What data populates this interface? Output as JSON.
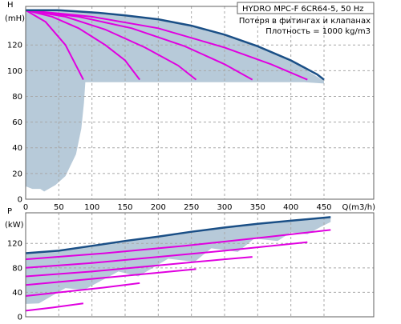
{
  "legend": {
    "title": "HYDRO MPC-F 6CR64-5, 50 Hz",
    "line1": "Потеря в фитингах и клапанах",
    "line2": "Плотность = 1000 kg/m3"
  },
  "colors": {
    "envelope": "#b7cad9",
    "max_curve": "#1a4f86",
    "op_curves": "#e000e0"
  },
  "chart_data": [
    {
      "type": "line",
      "name": "head",
      "ylabel_main": "H",
      "ylabel_unit": "(mH)",
      "xlabel": "Q(m3/h)",
      "xlim": [
        0,
        525
      ],
      "ylim": [
        0,
        150
      ],
      "xticks": [
        0,
        50,
        100,
        150,
        200,
        250,
        300,
        350,
        400,
        450
      ],
      "yticks": [
        0,
        20,
        40,
        60,
        80,
        100,
        120
      ],
      "grid": true,
      "envelope": [
        [
          0,
          147
        ],
        [
          30,
          147
        ],
        [
          50,
          147
        ],
        [
          80,
          146
        ],
        [
          110,
          145
        ],
        [
          150,
          143
        ],
        [
          200,
          140
        ],
        [
          250,
          135
        ],
        [
          300,
          128
        ],
        [
          350,
          119
        ],
        [
          400,
          108
        ],
        [
          450,
          92
        ],
        [
          450,
          90
        ],
        [
          420,
          91
        ],
        [
          380,
          91
        ],
        [
          340,
          91
        ],
        [
          300,
          91
        ],
        [
          260,
          91
        ],
        [
          220,
          91
        ],
        [
          180,
          91
        ],
        [
          150,
          91
        ],
        [
          120,
          91
        ],
        [
          90,
          91
        ],
        [
          88,
          75
        ],
        [
          84,
          55
        ],
        [
          76,
          35
        ],
        [
          60,
          18
        ],
        [
          45,
          11
        ],
        [
          28,
          6
        ],
        [
          22,
          8
        ],
        [
          10,
          8
        ],
        [
          0,
          10
        ]
      ],
      "max_curve": [
        [
          0,
          147
        ],
        [
          30,
          147
        ],
        [
          50,
          147
        ],
        [
          80,
          146
        ],
        [
          110,
          145
        ],
        [
          150,
          143
        ],
        [
          200,
          140
        ],
        [
          250,
          135
        ],
        [
          300,
          128
        ],
        [
          350,
          119
        ],
        [
          400,
          108
        ],
        [
          440,
          97
        ],
        [
          450,
          93
        ]
      ],
      "series": [
        {
          "values": [
            [
              0,
              147
            ],
            [
              30,
              138
            ],
            [
              60,
              120
            ],
            [
              87,
              93
            ]
          ]
        },
        {
          "values": [
            [
              0,
              147
            ],
            [
              40,
              142
            ],
            [
              80,
              133
            ],
            [
              120,
              120
            ],
            [
              150,
              108
            ],
            [
              172,
              93
            ]
          ]
        },
        {
          "values": [
            [
              0,
              147
            ],
            [
              60,
              142
            ],
            [
              120,
              132
            ],
            [
              180,
              118
            ],
            [
              230,
              104
            ],
            [
              257,
              93
            ]
          ]
        },
        {
          "values": [
            [
              0,
              147
            ],
            [
              80,
              142
            ],
            [
              160,
              133
            ],
            [
              240,
              119
            ],
            [
              300,
              105
            ],
            [
              342,
              93
            ]
          ]
        },
        {
          "values": [
            [
              0,
              147
            ],
            [
              100,
              142
            ],
            [
              200,
              133
            ],
            [
              300,
              118
            ],
            [
              370,
              105
            ],
            [
              425,
              93
            ]
          ]
        }
      ]
    },
    {
      "type": "line",
      "name": "power",
      "ylabel_main": "P",
      "ylabel_unit": "(kW)",
      "xlim": [
        0,
        525
      ],
      "ylim": [
        0,
        170
      ],
      "yticks": [
        0,
        40,
        80,
        120
      ],
      "grid": true,
      "envelope": [
        [
          0,
          104
        ],
        [
          50,
          108
        ],
        [
          100,
          116
        ],
        [
          150,
          124
        ],
        [
          200,
          131
        ],
        [
          250,
          139
        ],
        [
          300,
          146
        ],
        [
          350,
          152
        ],
        [
          400,
          157
        ],
        [
          460,
          163
        ],
        [
          460,
          155
        ],
        [
          445,
          147
        ],
        [
          425,
          135
        ],
        [
          400,
          138
        ],
        [
          380,
          124
        ],
        [
          345,
          128
        ],
        [
          320,
          106
        ],
        [
          280,
          112
        ],
        [
          255,
          90
        ],
        [
          215,
          95
        ],
        [
          170,
          66
        ],
        [
          140,
          74
        ],
        [
          88,
          44
        ],
        [
          60,
          47
        ],
        [
          20,
          22
        ],
        [
          0,
          21
        ]
      ],
      "max_curve": [
        [
          0,
          104
        ],
        [
          50,
          108
        ],
        [
          100,
          116
        ],
        [
          150,
          124
        ],
        [
          200,
          131
        ],
        [
          250,
          139
        ],
        [
          300,
          146
        ],
        [
          350,
          152
        ],
        [
          400,
          157
        ],
        [
          460,
          163
        ]
      ],
      "series": [
        {
          "values": [
            [
              0,
              10
            ],
            [
              40,
              15
            ],
            [
              87,
              22
            ]
          ]
        },
        {
          "values": [
            [
              0,
              34
            ],
            [
              60,
              41
            ],
            [
              120,
              48
            ],
            [
              172,
              55
            ]
          ]
        },
        {
          "values": [
            [
              0,
              52
            ],
            [
              100,
              62
            ],
            [
              200,
              72
            ],
            [
              257,
              78
            ]
          ]
        },
        {
          "values": [
            [
              0,
              66
            ],
            [
              100,
              74
            ],
            [
              200,
              84
            ],
            [
              300,
              94
            ],
            [
              342,
              98
            ]
          ]
        },
        {
          "values": [
            [
              0,
              80
            ],
            [
              100,
              88
            ],
            [
              200,
              98
            ],
            [
              300,
              108
            ],
            [
              425,
              122
            ]
          ]
        },
        {
          "values": [
            [
              0,
              94
            ],
            [
              120,
              104
            ],
            [
              240,
              116
            ],
            [
              360,
              130
            ],
            [
              460,
              142
            ]
          ]
        }
      ]
    }
  ]
}
